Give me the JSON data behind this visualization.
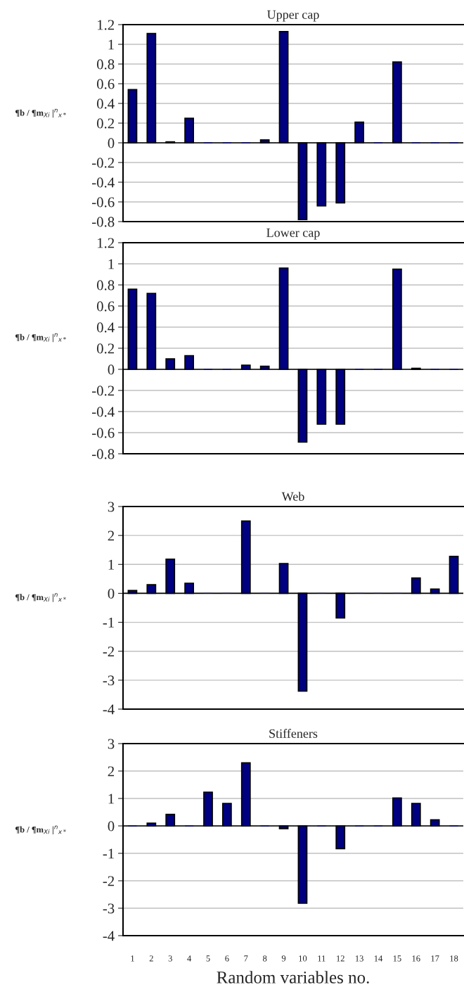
{
  "chart_data": [
    {
      "type": "bar",
      "title": "Upper cap",
      "ylabel": "¶b / ¶m$_{Xi}$ |$^{n}$$_{x*}$",
      "categories": [
        "1",
        "2",
        "3",
        "4",
        "5",
        "6",
        "7",
        "8",
        "9",
        "10",
        "11",
        "12",
        "13",
        "14",
        "15",
        "16",
        "17",
        "18"
      ],
      "color": "#000080",
      "values": [
        0.54,
        1.11,
        0.01,
        0.25,
        0,
        0,
        0,
        0.03,
        1.13,
        -0.78,
        -0.64,
        -0.61,
        0.21,
        0,
        0.82,
        0,
        0,
        0
      ],
      "ylim": [
        -0.8,
        1.2
      ],
      "yticks": [
        -0.8,
        -0.6,
        -0.4,
        -0.2,
        0,
        0.2,
        0.4,
        0.6,
        0.8,
        1,
        1.2
      ],
      "grid": "y",
      "tick_labels": "y"
    },
    {
      "type": "bar",
      "title": "Lower cap",
      "ylabel": "¶b / ¶m$_{Xi}$ |$^{n}$$_{x*}$",
      "categories": [
        "1",
        "2",
        "3",
        "4",
        "5",
        "6",
        "7",
        "8",
        "9",
        "10",
        "11",
        "12",
        "13",
        "14",
        "15",
        "16",
        "17",
        "18"
      ],
      "color": "#000080",
      "values": [
        0.76,
        0.72,
        0.1,
        0.13,
        0,
        0,
        0.04,
        0.03,
        0.96,
        -0.69,
        -0.52,
        -0.52,
        0,
        0,
        0.95,
        0.01,
        0,
        0
      ],
      "ylim": [
        -0.8,
        1.2
      ],
      "yticks": [
        -0.8,
        -0.6,
        -0.4,
        -0.2,
        0,
        0.2,
        0.4,
        0.6,
        0.8,
        1,
        1.2
      ],
      "grid": "y",
      "tick_labels": "y"
    },
    {
      "type": "bar",
      "title": "Web",
      "ylabel": "¶b / ¶m$_{Xi}$ |$^{n}$$_{x*}$",
      "categories": [
        "1",
        "2",
        "3",
        "4",
        "5",
        "6",
        "7",
        "8",
        "9",
        "10",
        "11",
        "12",
        "13",
        "14",
        "15",
        "16",
        "17",
        "18"
      ],
      "color": "#000080",
      "values": [
        0.1,
        0.3,
        1.18,
        0.35,
        0,
        0,
        2.5,
        0,
        1.03,
        -3.38,
        0,
        -0.85,
        0,
        0,
        0,
        0.53,
        0.15,
        1.28
      ],
      "ylim": [
        -4,
        3
      ],
      "yticks": [
        -4,
        -3,
        -2,
        -1,
        0,
        1,
        2,
        3
      ],
      "grid": "y",
      "tick_labels": "y"
    },
    {
      "type": "bar",
      "title": "Stiffeners",
      "ylabel": "¶b / ¶m$_{Xi}$ |$^{n}$$_{x*}$",
      "xlabel": "Random variables no.",
      "categories": [
        "1",
        "2",
        "3",
        "4",
        "5",
        "6",
        "7",
        "8",
        "9",
        "10",
        "11",
        "12",
        "13",
        "14",
        "15",
        "16",
        "17",
        "18"
      ],
      "color": "#000080",
      "values": [
        0,
        0.1,
        0.42,
        0,
        1.23,
        0.82,
        2.3,
        0,
        -0.1,
        -2.82,
        0,
        -0.83,
        0,
        0,
        1.02,
        0.82,
        0.22,
        0
      ],
      "ylim": [
        -4,
        3
      ],
      "yticks": [
        -4,
        -3,
        -2,
        -1,
        0,
        1,
        2,
        3
      ],
      "grid": "y"
    }
  ]
}
